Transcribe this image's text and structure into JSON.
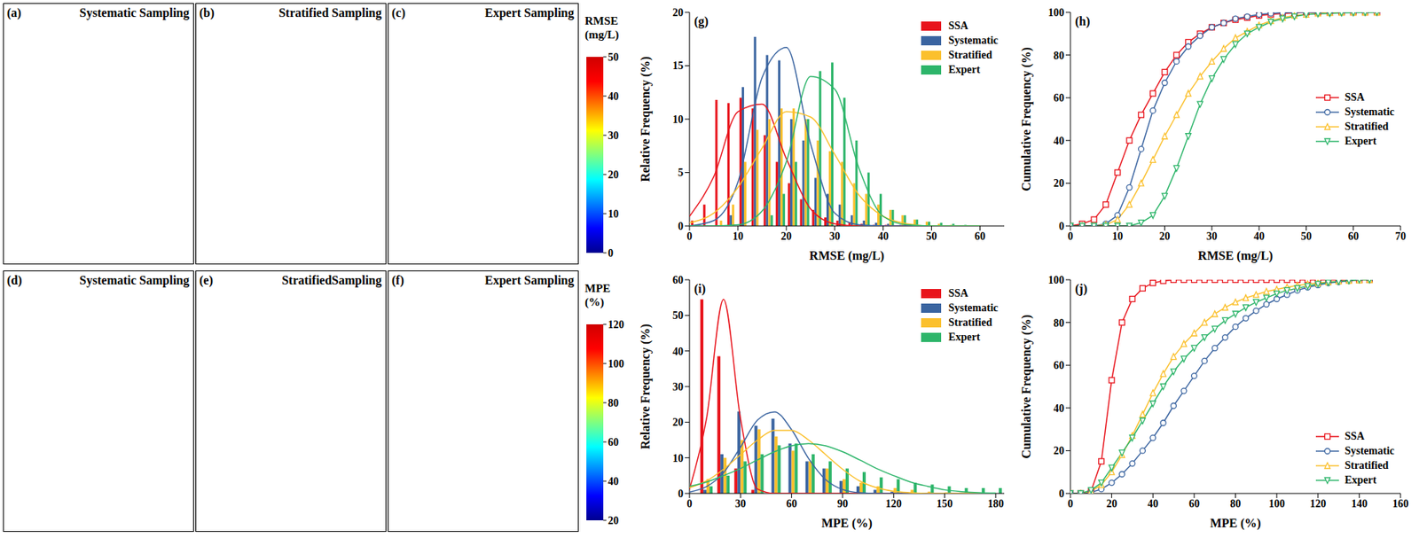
{
  "chart_data": [
    {
      "type": "map",
      "panel": "(a)",
      "title": "Systematic Sampling"
    },
    {
      "type": "map",
      "panel": "(b)",
      "title": "Stratified Sampling"
    },
    {
      "type": "map",
      "panel": "(c)",
      "title": "Expert Sampling"
    },
    {
      "type": "map",
      "panel": "(d)",
      "title": "Systematic Sampling"
    },
    {
      "type": "map",
      "panel": "(e)",
      "title": "StratifiedSampling"
    },
    {
      "type": "map",
      "panel": "(f)",
      "title": "Expert Sampling"
    },
    {
      "type": "colorbar",
      "title": "RMSE (mg/L)",
      "ylim": [
        0,
        50
      ],
      "yticks": [
        0,
        10,
        20,
        30,
        40,
        50
      ]
    },
    {
      "type": "colorbar",
      "title": "MPE (%)",
      "ylim": [
        20,
        120
      ],
      "yticks": [
        20,
        40,
        60,
        80,
        100,
        120
      ]
    },
    {
      "type": "histogram",
      "panel": "(g)",
      "x_label": "RMSE (mg/L)",
      "y_label": "Relative Frequency (%)",
      "legend": "upper right",
      "bins": [
        0,
        2.5,
        5,
        7.5,
        10,
        12.5,
        15,
        17.5,
        20,
        22.5,
        25,
        27.5,
        30,
        32.5,
        35,
        37.5,
        40,
        42.5,
        45,
        47.5,
        50,
        52.5,
        55,
        57.5,
        60,
        62.5
      ],
      "xlim": [
        0,
        65
      ],
      "xticks": [
        0,
        10,
        20,
        30,
        40,
        50,
        60
      ],
      "ylim": [
        0,
        20
      ],
      "yticks": [
        0,
        5,
        10,
        15,
        20
      ],
      "fit_x": [
        0,
        5,
        10,
        15,
        20,
        25,
        30,
        35,
        40,
        45,
        50,
        55,
        60
      ],
      "series": [
        {
          "name": "SSA",
          "color": "#e8141c",
          "values": [
            0.5,
            2,
            11.8,
            11.5,
            12,
            11,
            8.5,
            6,
            4,
            2.5,
            1.5,
            0.8,
            0.5,
            0.3,
            0.2,
            0.1,
            0.1,
            0,
            0,
            0,
            0,
            0,
            0,
            0,
            0
          ],
          "fit": [
            0.9,
            4.6,
            10.7,
            11.4,
            6.3,
            1.6,
            0.2,
            0,
            0,
            0,
            0,
            0,
            0
          ]
        },
        {
          "name": "Systematic",
          "color": "#3a64a0",
          "values": [
            0,
            0,
            0,
            1,
            13,
            17.7,
            16,
            15.5,
            10,
            8,
            4.5,
            3,
            2,
            1,
            0.5,
            0.3,
            0.2,
            0.1,
            0,
            0,
            0,
            0,
            0,
            0,
            0
          ],
          "fit": [
            0,
            0.5,
            4.1,
            13.9,
            16.7,
            7.7,
            1.2,
            0.1,
            0,
            0,
            0,
            0,
            0
          ]
        },
        {
          "name": "Stratified",
          "color": "#fbc02d",
          "values": [
            0,
            0,
            0.5,
            2,
            6,
            9,
            10,
            11,
            11,
            10,
            8,
            7,
            6,
            4,
            3,
            2,
            1.5,
            1,
            0.6,
            0.4,
            0.2,
            0.1,
            0,
            0,
            0
          ],
          "fit": [
            0.3,
            1.2,
            3.6,
            7.3,
            10.7,
            10.2,
            6.7,
            2.9,
            0.9,
            0.2,
            0,
            0,
            0
          ]
        },
        {
          "name": "Expert",
          "color": "#2db56a",
          "values": [
            0,
            0,
            0,
            0,
            0,
            0,
            1,
            3,
            6,
            10,
            14.5,
            15.3,
            12,
            8,
            5,
            3,
            1.5,
            1,
            0.6,
            0.4,
            0.3,
            0.2,
            0.1,
            0,
            0
          ],
          "fit": [
            0,
            0,
            0.1,
            1.4,
            6,
            14,
            12.8,
            5.4,
            0.9,
            0.1,
            0,
            0,
            0
          ]
        }
      ]
    },
    {
      "type": "line",
      "panel": "(h)",
      "x_label": "RMSE (mg/L)",
      "y_label": "Cumulative Frequency (%)",
      "legend": "center right",
      "x": [
        0,
        2.5,
        5,
        7.5,
        10,
        12.5,
        15,
        17.5,
        20,
        22.5,
        25,
        27.5,
        30,
        32.5,
        35,
        37.5,
        40,
        42.5,
        45,
        47.5,
        50,
        52.5,
        55,
        57.5,
        60,
        62.5,
        65
      ],
      "xlim": [
        0,
        70
      ],
      "xticks": [
        0,
        10,
        20,
        30,
        40,
        50,
        60,
        70
      ],
      "ylim": [
        0,
        100
      ],
      "yticks": [
        0,
        20,
        40,
        60,
        80,
        100
      ],
      "series": [
        {
          "name": "SSA",
          "color": "#e8141c",
          "marker": "square",
          "values": [
            0,
            1,
            3,
            10,
            25,
            40,
            52,
            62,
            72,
            80,
            86,
            90,
            93,
            95,
            96.5,
            97.5,
            98.5,
            99,
            99.5,
            99.7,
            100,
            100,
            100,
            100,
            100,
            100,
            100
          ]
        },
        {
          "name": "Systematic",
          "color": "#3a64a0",
          "marker": "circle",
          "values": [
            0,
            0,
            0,
            1,
            5,
            18,
            36,
            54,
            67,
            77,
            84,
            89,
            93,
            95,
            97,
            98,
            99,
            99.5,
            99.8,
            100,
            100,
            100,
            100,
            100,
            100,
            100,
            100
          ]
        },
        {
          "name": "Stratified",
          "color": "#fbc02d",
          "marker": "triangle-up",
          "values": [
            0,
            0,
            0,
            0.5,
            3,
            10,
            20,
            31,
            42,
            52,
            62,
            70,
            77,
            83,
            88,
            91,
            94,
            96,
            97.5,
            98.5,
            99,
            99.5,
            99.8,
            100,
            100,
            100,
            100
          ]
        },
        {
          "name": "Expert",
          "color": "#2db56a",
          "marker": "triangle-down",
          "values": [
            0,
            0,
            0,
            0,
            0,
            0,
            1.5,
            5,
            14,
            27,
            42,
            57,
            69,
            78,
            85,
            90,
            93,
            95.5,
            97,
            98,
            99,
            99.3,
            99.5,
            99.7,
            99.8,
            99.9,
            100
          ]
        }
      ]
    },
    {
      "type": "histogram",
      "panel": "(i)",
      "x_label": "MPE (%)",
      "y_label": "Relative Frequency (%)",
      "legend": "upper right",
      "bins": [
        5,
        15,
        25,
        35,
        45,
        55,
        65,
        75,
        85,
        95,
        105,
        115,
        125,
        135,
        145,
        155,
        165,
        175,
        185
      ],
      "xlim": [
        0,
        185
      ],
      "xticks": [
        0,
        30,
        60,
        90,
        120,
        150,
        180
      ],
      "ylim": [
        0,
        60
      ],
      "yticks": [
        0,
        10,
        20,
        30,
        40,
        50,
        60
      ],
      "fit_x": [
        0,
        10,
        20,
        30,
        40,
        50,
        60,
        70,
        80,
        90,
        100,
        110,
        120,
        130,
        140,
        150,
        160,
        170,
        180
      ],
      "series": [
        {
          "name": "SSA",
          "color": "#e8141c",
          "values": [
            54.5,
            38.5,
            7,
            1,
            0.2,
            0,
            0,
            0,
            0,
            0,
            0,
            0,
            0,
            0,
            0,
            0,
            0,
            0
          ],
          "fit": [
            1.2,
            21,
            54.5,
            21,
            1.2,
            0,
            0,
            0,
            0,
            0,
            0,
            0,
            0,
            0,
            0,
            0,
            0,
            0,
            0
          ]
        },
        {
          "name": "Systematic",
          "color": "#3a64a0",
          "values": [
            1,
            11,
            23,
            19,
            21,
            14,
            9,
            7,
            3.5,
            2,
            1,
            0.5,
            0.2,
            0,
            0,
            0,
            0,
            0
          ],
          "fit": [
            0.4,
            1.9,
            5.8,
            13,
            20.6,
            22.9,
            17.9,
            9.8,
            3.9,
            1.1,
            0.2,
            0,
            0,
            0,
            0,
            0,
            0,
            0,
            0
          ]
        },
        {
          "name": "Stratified",
          "color": "#fbc02d",
          "values": [
            4,
            10,
            15,
            18,
            16,
            12,
            9,
            7,
            4,
            3,
            2,
            1.5,
            1,
            0.5,
            0.3,
            0.2,
            0.1,
            0
          ],
          "fit": [
            1.6,
            3.5,
            6.8,
            10.9,
            15,
            17.7,
            17.7,
            15,
            10.9,
            6.8,
            3.5,
            1.6,
            0.6,
            0.2,
            0,
            0,
            0,
            0,
            0
          ]
        },
        {
          "name": "Expert",
          "color": "#2db56a",
          "values": [
            2,
            5,
            9,
            11,
            13.5,
            14,
            11,
            9,
            7,
            6,
            4.5,
            4,
            3,
            2.5,
            2,
            1.5,
            1.5,
            1.5
          ],
          "fit": [
            2,
            3.2,
            5,
            7,
            9.4,
            11.7,
            13.4,
            14,
            13.4,
            11.7,
            9.4,
            7,
            5,
            3.2,
            2,
            1,
            0.5,
            0.2,
            0.1
          ]
        }
      ]
    },
    {
      "type": "line",
      "panel": "(j)",
      "x_label": "MPE (%)",
      "y_label": "Cumulative Frequency (%)",
      "legend": "lower right",
      "x": [
        0,
        5,
        10,
        15,
        20,
        25,
        30,
        35,
        40,
        45,
        50,
        55,
        60,
        65,
        70,
        75,
        80,
        85,
        90,
        95,
        100,
        105,
        110,
        115,
        120,
        125,
        130,
        135,
        140,
        145
      ],
      "xlim": [
        0,
        160
      ],
      "xticks": [
        0,
        20,
        40,
        60,
        80,
        100,
        120,
        140,
        160
      ],
      "ylim": [
        0,
        100
      ],
      "yticks": [
        0,
        20,
        40,
        60,
        80,
        100
      ],
      "series": [
        {
          "name": "SSA",
          "color": "#e8141c",
          "marker": "square",
          "values": [
            0,
            0,
            1,
            15,
            53,
            80,
            91,
            96,
            98.5,
            99.5,
            100,
            100,
            100,
            100,
            100,
            100,
            100,
            100,
            100,
            100,
            100,
            100,
            100,
            100,
            100,
            100,
            100,
            100,
            100,
            100
          ]
        },
        {
          "name": "Systematic",
          "color": "#3a64a0",
          "marker": "circle",
          "values": [
            0,
            0,
            0.5,
            2,
            5,
            9,
            14,
            20,
            26,
            33,
            41,
            48,
            55,
            62,
            68,
            73,
            78,
            82,
            85.5,
            88.5,
            91,
            93,
            95,
            96.5,
            97.5,
            98.5,
            99,
            99.5,
            100,
            100
          ]
        },
        {
          "name": "Stratified",
          "color": "#fbc02d",
          "marker": "triangle-up",
          "values": [
            0,
            0,
            1,
            4,
            10,
            18,
            27,
            37,
            47,
            56,
            64,
            70,
            75,
            80,
            84,
            87,
            89.5,
            91.5,
            93,
            94.5,
            95.5,
            96.5,
            97.3,
            98,
            98.5,
            99,
            99.3,
            99.6,
            99.8,
            100
          ]
        },
        {
          "name": "Expert",
          "color": "#2db56a",
          "marker": "triangle-down",
          "values": [
            0,
            0,
            1.5,
            5,
            12,
            19,
            26,
            34,
            42,
            50,
            57,
            63,
            68,
            73,
            77,
            81,
            84,
            87,
            89.5,
            91.5,
            93.5,
            95,
            96,
            97,
            98,
            98.7,
            99.2,
            99.6,
            100,
            100
          ]
        }
      ]
    }
  ]
}
